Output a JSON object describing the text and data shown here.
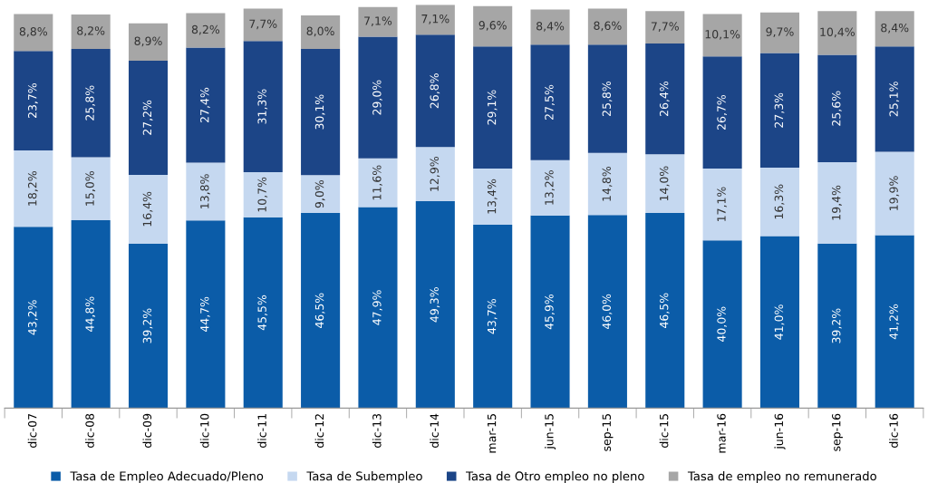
{
  "chart_data": {
    "type": "bar",
    "stacked": true,
    "tick_labels": "x",
    "legend": "bottom",
    "grid": false,
    "categories": [
      "dic-07",
      "dic-08",
      "dic-09",
      "dic-10",
      "dic-11",
      "dic-12",
      "dic-13",
      "dic-14",
      "mar-15",
      "jun-15",
      "sep-15",
      "dic-15",
      "mar-16",
      "jun-16",
      "sep-16",
      "dic-16"
    ],
    "series": [
      {
        "name": "Tasa de Empleo Adecuado/Pleno",
        "color": "#0b5ca8",
        "values": [
          43.2,
          44.8,
          39.2,
          44.7,
          45.5,
          46.5,
          47.9,
          49.3,
          43.7,
          45.9,
          46.0,
          46.5,
          40.0,
          41.0,
          39.2,
          41.2
        ],
        "value_labels": [
          "43,2%",
          "44,8%",
          "39,2%",
          "44,7%",
          "45,5%",
          "46,5%",
          "47,9%",
          "49,3%",
          "43,7%",
          "45,9%",
          "46,0%",
          "46,5%",
          "40,0%",
          "41,0%",
          "39,2%",
          "41,2%"
        ]
      },
      {
        "name": "Tasa de Subempleo",
        "color": "#c5d8f0",
        "values": [
          18.2,
          15.0,
          16.4,
          13.8,
          10.7,
          9.0,
          11.6,
          12.9,
          13.4,
          13.2,
          14.8,
          14.0,
          17.1,
          16.3,
          19.4,
          19.9
        ],
        "value_labels": [
          "18,2%",
          "15,0%",
          "16,4%",
          "13,8%",
          "10,7%",
          "9,0%",
          "11,6%",
          "12,9%",
          "13,4%",
          "13,2%",
          "14,8%",
          "14,0%",
          "17,1%",
          "16,3%",
          "19,4%",
          "19,9%"
        ]
      },
      {
        "name": "Tasa de Otro empleo no pleno",
        "color": "#1c4587",
        "values": [
          23.7,
          25.8,
          27.2,
          27.4,
          31.3,
          30.1,
          29.0,
          26.8,
          29.1,
          27.5,
          25.8,
          26.4,
          26.7,
          27.3,
          25.6,
          25.1
        ],
        "value_labels": [
          "23,7%",
          "25,8%",
          "27,2%",
          "27,4%",
          "31,3%",
          "30,1%",
          "29,0%",
          "26,8%",
          "29,1%",
          "27,5%",
          "25,8%",
          "26,4%",
          "26,7%",
          "27,3%",
          "25,6%",
          "25,1%"
        ]
      },
      {
        "name": "Tasa de empleo no remunerado",
        "color": "#a6a6a6",
        "values": [
          8.8,
          8.2,
          8.9,
          8.2,
          7.7,
          8.0,
          7.1,
          7.1,
          9.6,
          8.4,
          8.6,
          7.7,
          10.1,
          9.7,
          10.4,
          8.4
        ],
        "value_labels": [
          "8,8%",
          "8,2%",
          "8,9%",
          "8,2%",
          "7,7%",
          "8,0%",
          "7,1%",
          "7,1%",
          "9,6%",
          "8,4%",
          "8,6%",
          "7,7%",
          "10,1%",
          "9,7%",
          "10,4%",
          "8,4%"
        ]
      }
    ]
  }
}
